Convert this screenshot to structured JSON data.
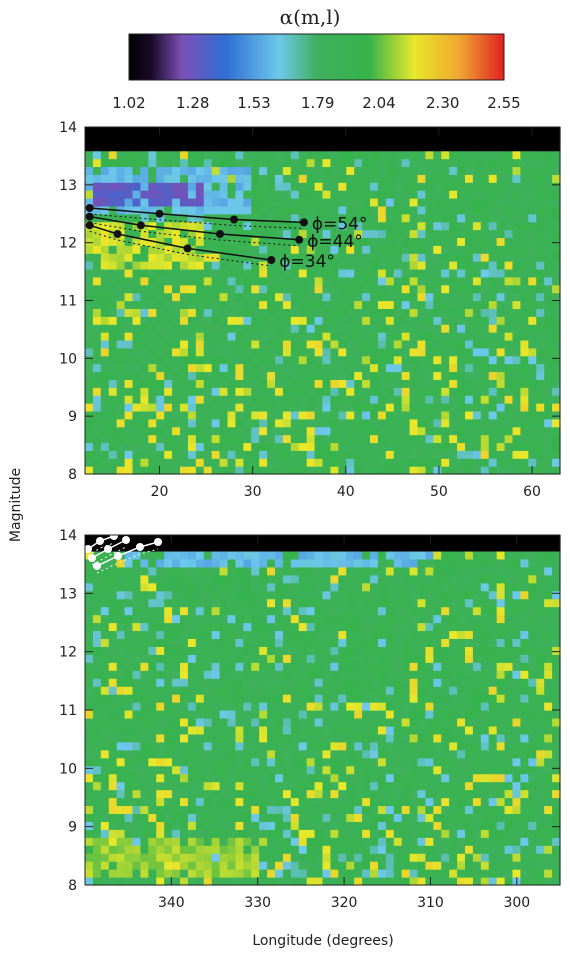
{
  "colorbar": {
    "title": "α(m,l)",
    "ticks": [
      "1.02",
      "1.28",
      "1.53",
      "1.79",
      "2.04",
      "2.30",
      "2.55"
    ],
    "range": [
      1.02,
      2.55
    ],
    "colors": [
      "#000000",
      "#7b4fb5",
      "#2f6fd6",
      "#6ec8ea",
      "#36b34a",
      "#e8e82a",
      "#f0a830",
      "#e02020"
    ]
  },
  "chart_data": [
    {
      "type": "heatmap",
      "panel": "top",
      "xlabel": "",
      "ylabel": "Magnitude",
      "xlim": [
        12,
        63
      ],
      "ylim": [
        8,
        14
      ],
      "xticks": [
        "20",
        "30",
        "40",
        "50",
        "60"
      ],
      "yticks": [
        "8",
        "9",
        "10",
        "11",
        "12",
        "13",
        "14"
      ],
      "background_value": 1.9,
      "regions": [
        {
          "x": [
            12,
            63
          ],
          "y": [
            13.6,
            14.0
          ],
          "value": 1.02
        },
        {
          "x": [
            12,
            30
          ],
          "y": [
            12.5,
            13.3
          ],
          "value": 1.6
        },
        {
          "x": [
            13,
            26
          ],
          "y": [
            12.6,
            13.0
          ],
          "value": 1.3
        },
        {
          "x": [
            12,
            25
          ],
          "y": [
            11.6,
            12.3
          ],
          "value": 2.15
        }
      ],
      "annotations": [
        {
          "text": "ϕ=54°",
          "curve": [
            [
              12.5,
              12.6
            ],
            [
              20,
              12.5
            ],
            [
              28,
              12.4
            ],
            [
              35.5,
              12.35
            ]
          ]
        },
        {
          "text": "ϕ=44°",
          "curve": [
            [
              12.5,
              12.45
            ],
            [
              18,
              12.3
            ],
            [
              26.5,
              12.15
            ],
            [
              35,
              12.05
            ]
          ]
        },
        {
          "text": "ϕ=34°",
          "curve": [
            [
              12.5,
              12.3
            ],
            [
              15.5,
              12.15
            ],
            [
              23,
              11.9
            ],
            [
              32,
              11.7
            ]
          ]
        }
      ]
    },
    {
      "type": "heatmap",
      "panel": "bottom",
      "xlabel": "Longitude (degrees)",
      "ylabel": "Magnitude",
      "xlim": [
        350,
        295
      ],
      "ylim": [
        8,
        14
      ],
      "xticks": [
        "340",
        "330",
        "320",
        "310",
        "300"
      ],
      "yticks": [
        "8",
        "9",
        "10",
        "11",
        "12",
        "13",
        "14"
      ],
      "background_value": 1.9,
      "regions": [
        {
          "x": [
            350,
            295
          ],
          "y": [
            13.7,
            14.0
          ],
          "value": 1.02
        },
        {
          "x": [
            345,
            310
          ],
          "y": [
            13.4,
            13.7
          ],
          "value": 1.6
        },
        {
          "x": [
            350,
            330
          ],
          "y": [
            8.2,
            8.8
          ],
          "value": 2.1
        }
      ],
      "annotations": []
    }
  ]
}
